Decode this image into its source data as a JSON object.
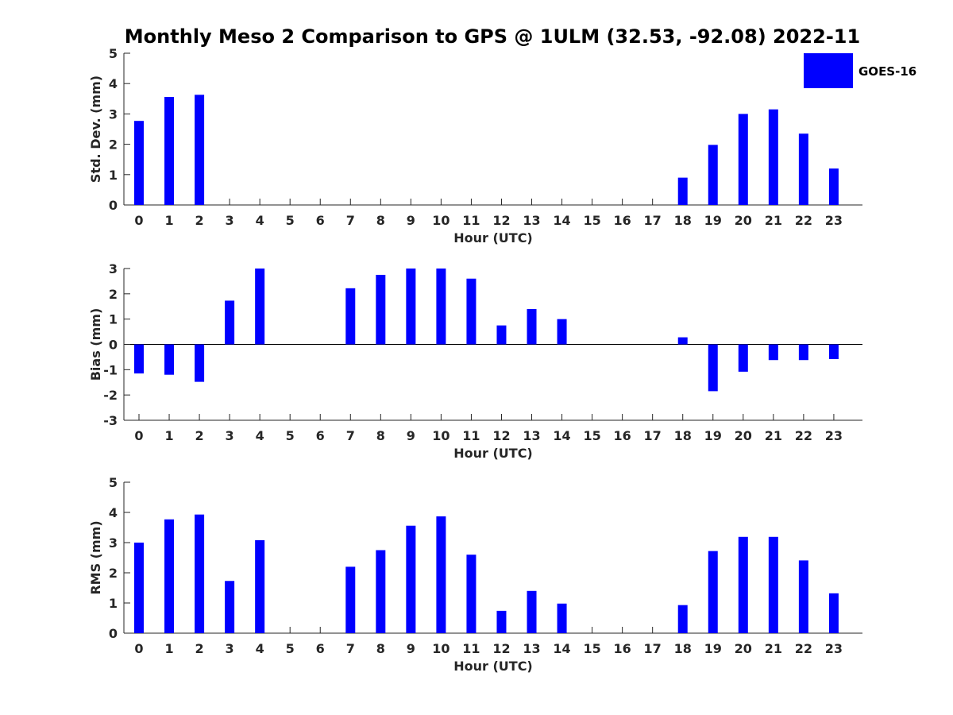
{
  "chart_data": {
    "title": "Monthly Meso 2 Comparison to GPS @ 1ULM (32.53, -92.08) 2022-11",
    "type": "bar",
    "legend": {
      "label": "GOES-16",
      "color": "#0000ff",
      "position": "top-right"
    },
    "categories": [
      "0",
      "1",
      "2",
      "3",
      "4",
      "5",
      "6",
      "7",
      "8",
      "9",
      "10",
      "11",
      "12",
      "13",
      "14",
      "15",
      "16",
      "17",
      "18",
      "19",
      "20",
      "21",
      "22",
      "23"
    ],
    "panels": [
      {
        "name": "std-dev",
        "ylabel": "Std. Dev. (mm)",
        "xlabel": "Hour (UTC)",
        "ylim": [
          0,
          5
        ],
        "yticks": [
          0,
          1,
          2,
          3,
          4,
          5
        ],
        "series": [
          {
            "name": "GOES-16",
            "values": [
              2.77,
              3.56,
              3.63,
              null,
              null,
              null,
              null,
              null,
              null,
              null,
              null,
              null,
              null,
              null,
              null,
              null,
              null,
              null,
              0.9,
              1.98,
              3.0,
              3.15,
              2.35,
              1.2
            ]
          }
        ]
      },
      {
        "name": "bias",
        "ylabel": "Bias (mm)",
        "xlabel": "Hour (UTC)",
        "ylim": [
          -3,
          3
        ],
        "yticks": [
          -3,
          -2,
          -1,
          0,
          1,
          2,
          3
        ],
        "series": [
          {
            "name": "GOES-16",
            "values": [
              -1.15,
              -1.2,
              -1.48,
              1.73,
              3.0,
              null,
              null,
              2.22,
              2.75,
              3.0,
              3.0,
              2.6,
              0.75,
              1.4,
              1.0,
              null,
              null,
              null,
              0.28,
              -1.85,
              -1.08,
              -0.62,
              -0.62,
              -0.58
            ]
          }
        ]
      },
      {
        "name": "rms",
        "ylabel": "RMS (mm)",
        "xlabel": "Hour (UTC)",
        "ylim": [
          0,
          5
        ],
        "yticks": [
          0,
          1,
          2,
          3,
          4,
          5
        ],
        "series": [
          {
            "name": "GOES-16",
            "values": [
              3.0,
              3.77,
              3.93,
              1.73,
              3.08,
              null,
              null,
              2.2,
              2.75,
              3.56,
              3.87,
              2.6,
              0.74,
              1.4,
              0.98,
              null,
              null,
              null,
              0.93,
              2.72,
              3.19,
              3.19,
              2.41,
              1.32
            ]
          }
        ]
      }
    ]
  }
}
